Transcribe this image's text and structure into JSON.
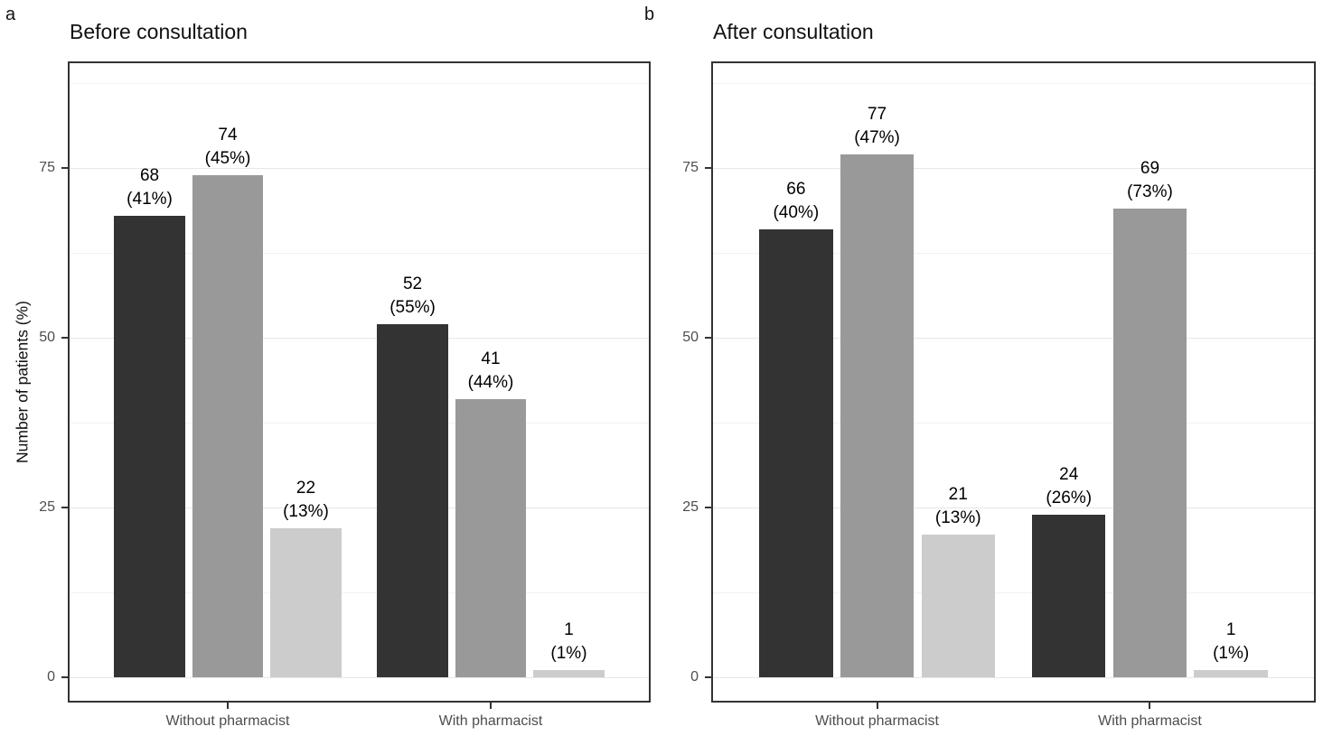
{
  "styles": {
    "bar_dark": "#333333",
    "bar_medium": "#999999",
    "bar_light": "#cccccc",
    "grid_major": "#e7e7e7",
    "grid_minor": "#f2f2f2",
    "panel_border": "#333333",
    "axis_text": "#4d4d4d",
    "label_text": "#000000",
    "background": "#ffffff"
  },
  "chart_data": [
    {
      "type": "bar",
      "panel_label": "a",
      "title": "Before consultation",
      "ylabel": "Number of patients (%)",
      "xlabel": "",
      "ylim": [
        0,
        91
      ],
      "yticks": [
        0,
        25,
        50,
        75
      ],
      "yticks_minor": [
        12.5,
        37.5,
        62.5,
        87.5
      ],
      "grid": "horizontal major and minor, light gray",
      "legend": "none",
      "categories": [
        "Without pharmacist",
        "With pharmacist"
      ],
      "series": [
        {
          "name": "dark-gray-bar",
          "color": "#333333",
          "values": [
            68,
            52
          ],
          "pct_labels": [
            "(41%)",
            "(55%)"
          ]
        },
        {
          "name": "medium-gray-bar",
          "color": "#999999",
          "values": [
            74,
            41
          ],
          "pct_labels": [
            "(45%)",
            "(44%)"
          ]
        },
        {
          "name": "light-gray-bar",
          "color": "#cccccc",
          "values": [
            22,
            1
          ],
          "pct_labels": [
            "(13%)",
            "(1%)"
          ]
        }
      ]
    },
    {
      "type": "bar",
      "panel_label": "b",
      "title": "After consultation",
      "ylabel": "",
      "xlabel": "",
      "ylim": [
        0,
        91
      ],
      "yticks": [
        0,
        25,
        50,
        75
      ],
      "yticks_minor": [
        12.5,
        37.5,
        62.5,
        87.5
      ],
      "grid": "horizontal major and minor, light gray",
      "legend": "none",
      "categories": [
        "Without pharmacist",
        "With pharmacist"
      ],
      "series": [
        {
          "name": "dark-gray-bar",
          "color": "#333333",
          "values": [
            66,
            24
          ],
          "pct_labels": [
            "(40%)",
            "(26%)"
          ]
        },
        {
          "name": "medium-gray-bar",
          "color": "#999999",
          "values": [
            77,
            69
          ],
          "pct_labels": [
            "(47%)",
            "(73%)"
          ]
        },
        {
          "name": "light-gray-bar",
          "color": "#cccccc",
          "values": [
            21,
            1
          ],
          "pct_labels": [
            "(13%)",
            "(1%)"
          ]
        }
      ]
    }
  ]
}
